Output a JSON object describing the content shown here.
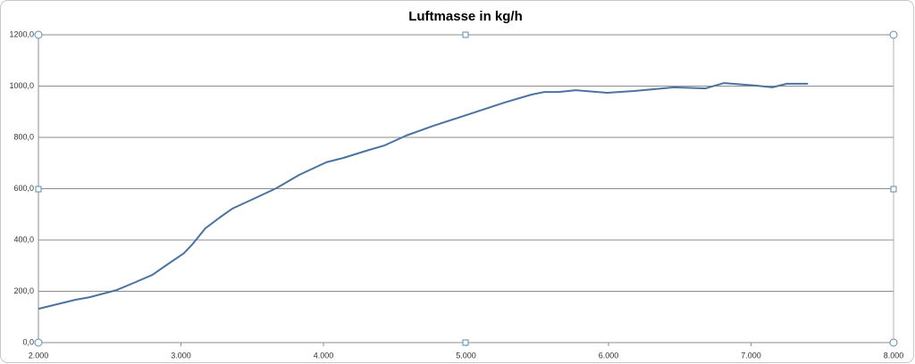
{
  "chart_data": {
    "type": "line",
    "title": "Luftmasse in kg/h",
    "x": [
      2000,
      2260,
      2360,
      2550,
      2670,
      2800,
      2890,
      3020,
      3080,
      3170,
      3270,
      3360,
      3520,
      3670,
      3830,
      4020,
      4140,
      4300,
      4430,
      4580,
      4770,
      5020,
      5270,
      5460,
      5550,
      5650,
      5770,
      5990,
      6180,
      6460,
      6680,
      6810,
      7030,
      7150,
      7250,
      7400
    ],
    "series": [
      {
        "name": "Luftmasse in kg/h",
        "color": "#4a73a0",
        "values": [
          132,
          167,
          177,
          205,
          233,
          264,
          299,
          348,
          383,
          445,
          487,
          522,
          563,
          602,
          654,
          703,
          720,
          748,
          769,
          807,
          845,
          890,
          936,
          967,
          977,
          977,
          984,
          974,
          981,
          995,
          991,
          1012,
          1002,
          995,
          1009,
          1009
        ]
      }
    ],
    "xlim": [
      2000,
      8000
    ],
    "xticks": [
      {
        "value": 2000,
        "label": "2.000"
      },
      {
        "value": 3000,
        "label": "3.000"
      },
      {
        "value": 4000,
        "label": "4.000"
      },
      {
        "value": 5000,
        "label": "5.000"
      },
      {
        "value": 6000,
        "label": "6.000"
      },
      {
        "value": 7000,
        "label": "7.000"
      },
      {
        "value": 8000,
        "label": "8.000"
      }
    ],
    "ylim": [
      0,
      1200
    ],
    "yticks": [
      {
        "value": 0,
        "label": "0,0"
      },
      {
        "value": 200,
        "label": "200,0"
      },
      {
        "value": 400,
        "label": "400,0"
      },
      {
        "value": 600,
        "label": "600,0"
      },
      {
        "value": 800,
        "label": "800,0"
      },
      {
        "value": 1000,
        "label": "1000,0"
      },
      {
        "value": 1200,
        "label": "1200,0"
      }
    ],
    "grid": true
  }
}
